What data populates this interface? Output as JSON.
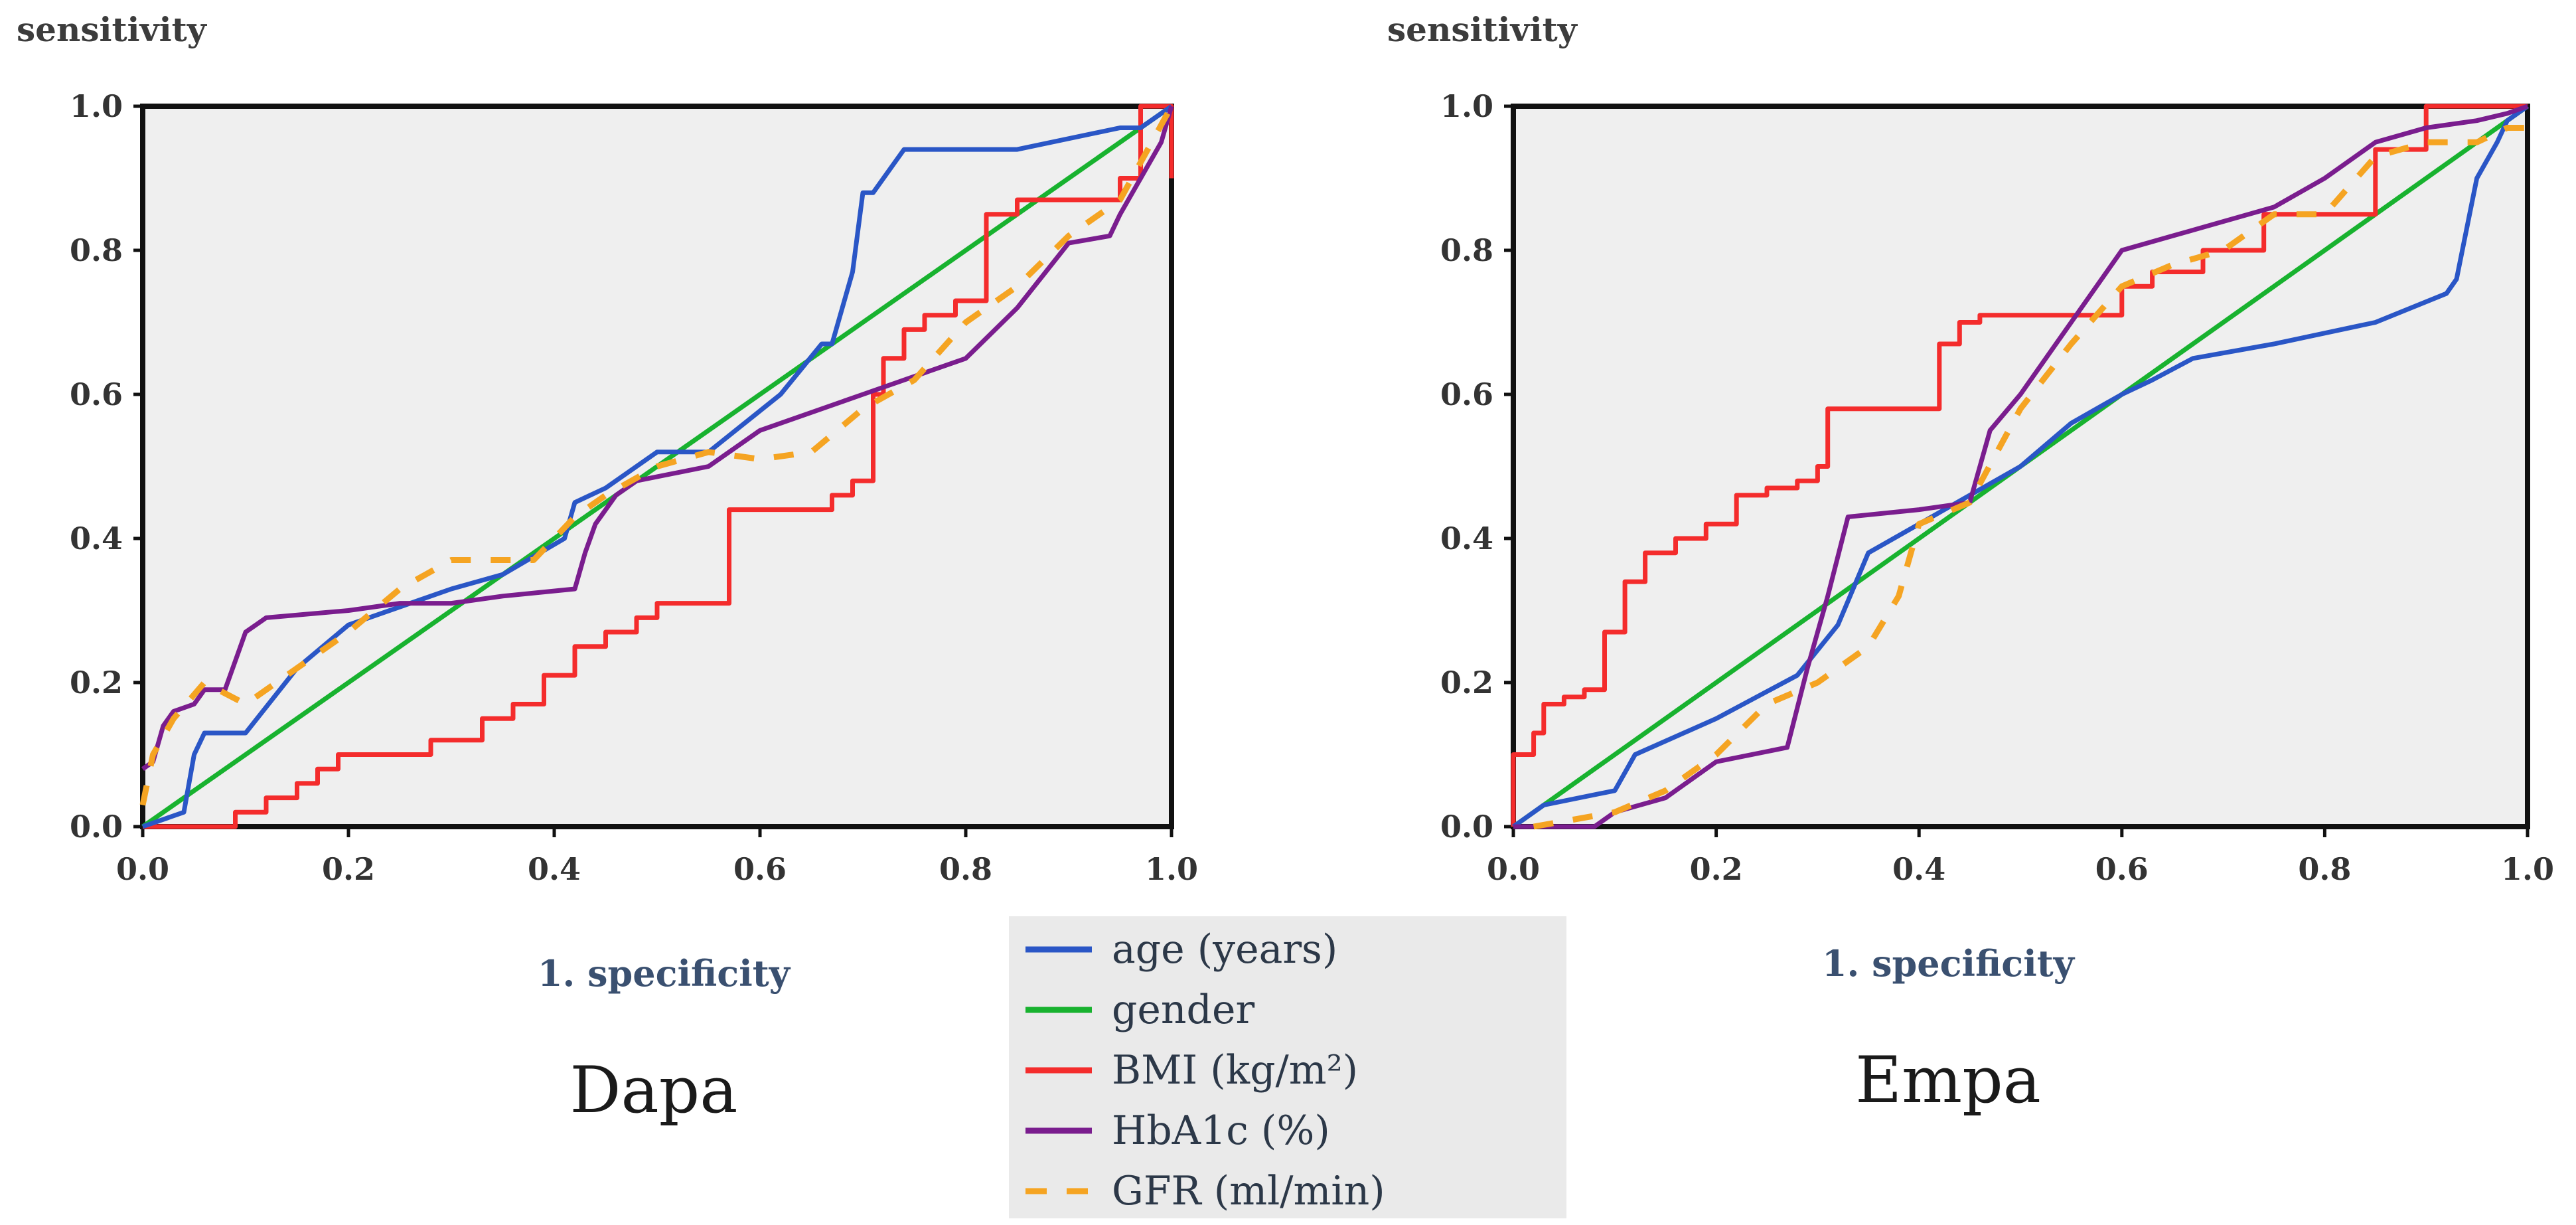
{
  "colors": {
    "age": "#2a56c6",
    "gender": "#18b22f",
    "bmi": "#f42c2c",
    "hba1c": "#7a1d8e",
    "gfr": "#f5a422",
    "plot_bg": "#efefef",
    "legend_bg": "#eaeaea"
  },
  "legend": {
    "items": [
      {
        "key": "age",
        "label": "age (years)",
        "dashed": false
      },
      {
        "key": "gender",
        "label": "gender",
        "dashed": false
      },
      {
        "key": "bmi",
        "label": "BMI (kg/m²)",
        "dashed": false
      },
      {
        "key": "hba1c",
        "label": "HbA1c (%)",
        "dashed": false
      },
      {
        "key": "gfr",
        "label": "GFR (ml/min)",
        "dashed": true
      }
    ]
  },
  "chart_data": [
    {
      "type": "line",
      "title": "Dapa",
      "xlabel": "1. specificity",
      "ylabel": "sensitivity",
      "xlim": [
        0,
        1
      ],
      "ylim": [
        0,
        1
      ],
      "xticks": [
        "0.0",
        "0.2",
        "0.4",
        "0.6",
        "0.8",
        "1.0"
      ],
      "yticks": [
        "0.0",
        "0.2",
        "0.4",
        "0.6",
        "0.8",
        "1.0"
      ],
      "series": [
        {
          "key": "gender",
          "name": "gender",
          "x": [
            0,
            1
          ],
          "y": [
            0,
            1
          ]
        },
        {
          "key": "bmi",
          "name": "BMI (kg/m²)",
          "x": [
            0,
            0.09,
            0.09,
            0.12,
            0.12,
            0.15,
            0.15,
            0.17,
            0.17,
            0.19,
            0.19,
            0.28,
            0.28,
            0.33,
            0.33,
            0.36,
            0.36,
            0.39,
            0.39,
            0.42,
            0.42,
            0.45,
            0.45,
            0.48,
            0.48,
            0.5,
            0.5,
            0.57,
            0.57,
            0.67,
            0.67,
            0.69,
            0.69,
            0.71,
            0.71,
            0.72,
            0.72,
            0.74,
            0.74,
            0.76,
            0.76,
            0.79,
            0.79,
            0.82,
            0.82,
            0.85,
            0.85,
            0.95,
            0.95,
            0.97,
            0.97,
            1.0,
            1.0
          ],
          "y": [
            0,
            0,
            0.02,
            0.02,
            0.04,
            0.04,
            0.06,
            0.06,
            0.08,
            0.08,
            0.1,
            0.1,
            0.12,
            0.12,
            0.15,
            0.15,
            0.17,
            0.17,
            0.21,
            0.21,
            0.25,
            0.25,
            0.27,
            0.27,
            0.29,
            0.29,
            0.31,
            0.31,
            0.44,
            0.44,
            0.46,
            0.46,
            0.48,
            0.48,
            0.6,
            0.6,
            0.65,
            0.65,
            0.69,
            0.69,
            0.71,
            0.71,
            0.73,
            0.73,
            0.85,
            0.85,
            0.87,
            0.87,
            0.9,
            0.9,
            1.0,
            1.0,
            0.9
          ]
        },
        {
          "key": "age",
          "name": "age (years)",
          "x": [
            0,
            0.04,
            0.05,
            0.06,
            0.1,
            0.15,
            0.2,
            0.3,
            0.35,
            0.41,
            0.42,
            0.45,
            0.5,
            0.55,
            0.62,
            0.66,
            0.67,
            0.69,
            0.7,
            0.71,
            0.74,
            0.85,
            0.95,
            0.97,
            1.0
          ],
          "y": [
            0,
            0.02,
            0.1,
            0.13,
            0.13,
            0.22,
            0.28,
            0.33,
            0.35,
            0.4,
            0.45,
            0.47,
            0.52,
            0.52,
            0.6,
            0.67,
            0.67,
            0.77,
            0.88,
            0.88,
            0.94,
            0.94,
            0.97,
            0.97,
            1.0
          ]
        },
        {
          "key": "hba1c",
          "name": "HbA1c (%)",
          "x": [
            0,
            0.01,
            0.02,
            0.03,
            0.05,
            0.06,
            0.08,
            0.09,
            0.1,
            0.12,
            0.2,
            0.25,
            0.3,
            0.35,
            0.42,
            0.43,
            0.44,
            0.46,
            0.48,
            0.55,
            0.6,
            0.7,
            0.8,
            0.85,
            0.9,
            0.94,
            0.95,
            0.97,
            0.99,
            1.0
          ],
          "y": [
            0.08,
            0.09,
            0.14,
            0.16,
            0.17,
            0.19,
            0.19,
            0.23,
            0.27,
            0.29,
            0.3,
            0.31,
            0.31,
            0.32,
            0.33,
            0.38,
            0.42,
            0.46,
            0.48,
            0.5,
            0.55,
            0.6,
            0.65,
            0.72,
            0.81,
            0.82,
            0.85,
            0.9,
            0.95,
            1.0
          ]
        },
        {
          "key": "gfr",
          "name": "GFR (ml/min)",
          "x": [
            0,
            0.01,
            0.03,
            0.06,
            0.1,
            0.15,
            0.2,
            0.25,
            0.3,
            0.38,
            0.42,
            0.45,
            0.5,
            0.55,
            0.6,
            0.65,
            0.7,
            0.75,
            0.8,
            0.85,
            0.9,
            0.95,
            1.0
          ],
          "y": [
            0.03,
            0.1,
            0.15,
            0.2,
            0.17,
            0.22,
            0.27,
            0.33,
            0.37,
            0.37,
            0.43,
            0.46,
            0.5,
            0.52,
            0.51,
            0.52,
            0.58,
            0.62,
            0.7,
            0.75,
            0.82,
            0.87,
            1.0
          ]
        }
      ]
    },
    {
      "type": "line",
      "title": "Empa",
      "xlabel": "1. specificity",
      "ylabel": "sensitivity",
      "xlim": [
        0,
        1
      ],
      "ylim": [
        0,
        1
      ],
      "xticks": [
        "0.0",
        "0.2",
        "0.4",
        "0.6",
        "0.8",
        "1.0"
      ],
      "yticks": [
        "0.0",
        "0.2",
        "0.4",
        "0.6",
        "0.8",
        "1.0"
      ],
      "series": [
        {
          "key": "gender",
          "name": "gender",
          "x": [
            0,
            1
          ],
          "y": [
            0,
            1
          ]
        },
        {
          "key": "bmi",
          "name": "BMI (kg/m²)",
          "x": [
            0,
            0,
            0.02,
            0.02,
            0.03,
            0.03,
            0.05,
            0.05,
            0.07,
            0.07,
            0.09,
            0.09,
            0.11,
            0.11,
            0.13,
            0.13,
            0.16,
            0.16,
            0.19,
            0.19,
            0.22,
            0.22,
            0.25,
            0.25,
            0.28,
            0.28,
            0.3,
            0.3,
            0.31,
            0.31,
            0.42,
            0.42,
            0.44,
            0.44,
            0.46,
            0.46,
            0.6,
            0.6,
            0.63,
            0.63,
            0.68,
            0.68,
            0.74,
            0.74,
            0.85,
            0.85,
            0.9,
            0.9,
            1.0
          ],
          "y": [
            0,
            0.1,
            0.1,
            0.13,
            0.13,
            0.17,
            0.17,
            0.18,
            0.18,
            0.19,
            0.19,
            0.27,
            0.27,
            0.34,
            0.34,
            0.38,
            0.38,
            0.4,
            0.4,
            0.42,
            0.42,
            0.46,
            0.46,
            0.47,
            0.47,
            0.48,
            0.48,
            0.5,
            0.5,
            0.58,
            0.58,
            0.67,
            0.67,
            0.7,
            0.7,
            0.71,
            0.71,
            0.75,
            0.75,
            0.77,
            0.77,
            0.8,
            0.8,
            0.85,
            0.85,
            0.94,
            0.94,
            1.0,
            1.0
          ]
        },
        {
          "key": "age",
          "name": "age (years)",
          "x": [
            0,
            0.03,
            0.1,
            0.12,
            0.2,
            0.28,
            0.32,
            0.35,
            0.4,
            0.45,
            0.5,
            0.55,
            0.6,
            0.63,
            0.67,
            0.75,
            0.85,
            0.92,
            0.93,
            0.95,
            0.97,
            0.98,
            1.0
          ],
          "y": [
            0,
            0.03,
            0.05,
            0.1,
            0.15,
            0.21,
            0.28,
            0.38,
            0.42,
            0.46,
            0.5,
            0.56,
            0.6,
            0.62,
            0.65,
            0.67,
            0.7,
            0.74,
            0.76,
            0.9,
            0.95,
            0.98,
            1.0
          ]
        },
        {
          "key": "hba1c",
          "name": "HbA1c (%)",
          "x": [
            0,
            0.08,
            0.1,
            0.15,
            0.2,
            0.27,
            0.29,
            0.31,
            0.33,
            0.4,
            0.45,
            0.47,
            0.5,
            0.55,
            0.6,
            0.65,
            0.75,
            0.8,
            0.85,
            0.9,
            0.95,
            0.98,
            1.0
          ],
          "y": [
            0,
            0,
            0.02,
            0.04,
            0.09,
            0.11,
            0.22,
            0.32,
            0.43,
            0.44,
            0.45,
            0.55,
            0.6,
            0.7,
            0.8,
            0.82,
            0.86,
            0.9,
            0.95,
            0.97,
            0.98,
            0.99,
            1.0
          ]
        },
        {
          "key": "gfr",
          "name": "GFR (ml/min)",
          "x": [
            0.02,
            0.06,
            0.1,
            0.15,
            0.2,
            0.25,
            0.3,
            0.35,
            0.38,
            0.4,
            0.45,
            0.5,
            0.55,
            0.6,
            0.65,
            0.7,
            0.75,
            0.8,
            0.85,
            0.9,
            0.95,
            0.98,
            1.0
          ],
          "y": [
            0,
            0.01,
            0.02,
            0.05,
            0.1,
            0.17,
            0.2,
            0.25,
            0.32,
            0.42,
            0.45,
            0.58,
            0.67,
            0.75,
            0.78,
            0.8,
            0.85,
            0.85,
            0.93,
            0.95,
            0.95,
            0.97,
            0.97
          ]
        }
      ]
    }
  ]
}
